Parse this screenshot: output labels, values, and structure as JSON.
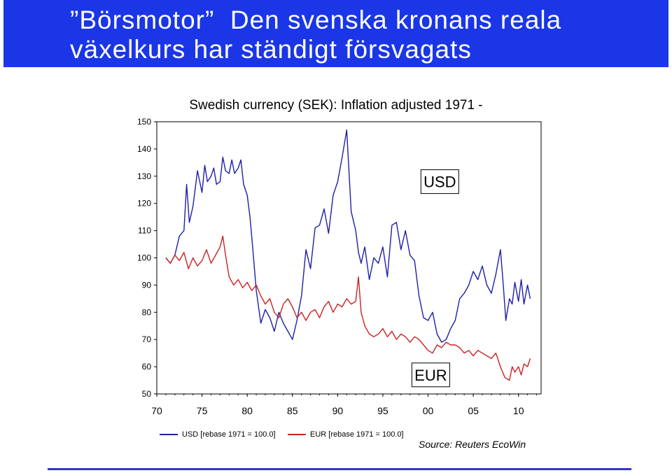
{
  "slide": {
    "title_line1": "”Börsmotor”  Den svenska kronans reala",
    "title_line2": "växelkurs har ständigt försvagats",
    "source": "Source: Reuters EcoWin",
    "banner_color": "#1a36e6",
    "rule_color": "#3333cc"
  },
  "chart_data": {
    "type": "line",
    "title": "Swedish currency (SEK): Inflation adjusted 1971 -",
    "xlabel": "",
    "ylabel": "",
    "xlim": [
      1970,
      2012.5
    ],
    "ylim": [
      50,
      150
    ],
    "x_ticks": [
      "70",
      "75",
      "80",
      "85",
      "90",
      "95",
      "00",
      "05",
      "10"
    ],
    "y_ticks": [
      "150",
      "140",
      "130",
      "120",
      "110",
      "100",
      "90",
      "80",
      "70",
      "60",
      "50"
    ],
    "grid": false,
    "legend_position": "bottom",
    "annotations": [
      {
        "text": "USD",
        "x": 2001.3,
        "y": 128
      },
      {
        "text": "EUR",
        "x": 2000.3,
        "y": 57
      }
    ],
    "series": [
      {
        "name": "USD [rebase 1971 = 100.0]",
        "color": "#1f1fa8",
        "x": [
          1971.0,
          1971.5,
          1972.0,
          1972.5,
          1973.0,
          1973.3,
          1973.6,
          1974.0,
          1974.5,
          1975.0,
          1975.3,
          1975.6,
          1976.0,
          1976.3,
          1976.6,
          1977.0,
          1977.3,
          1977.6,
          1978.0,
          1978.3,
          1978.6,
          1979.0,
          1979.3,
          1979.6,
          1980.0,
          1980.3,
          1980.6,
          1981.0,
          1981.5,
          1982.0,
          1982.5,
          1983.0,
          1983.5,
          1984.0,
          1984.5,
          1985.0,
          1985.5,
          1986.0,
          1986.5,
          1987.0,
          1987.5,
          1988.0,
          1988.5,
          1989.0,
          1989.5,
          1990.0,
          1990.5,
          1991.0,
          1991.5,
          1992.0,
          1992.3,
          1992.6,
          1993.0,
          1993.5,
          1994.0,
          1994.5,
          1995.0,
          1995.5,
          1996.0,
          1996.5,
          1997.0,
          1997.5,
          1998.0,
          1998.5,
          1999.0,
          1999.5,
          2000.0,
          2000.5,
          2001.0,
          2001.5,
          2002.0,
          2002.5,
          2003.0,
          2003.5,
          2004.0,
          2004.5,
          2005.0,
          2005.5,
          2006.0,
          2006.5,
          2007.0,
          2007.5,
          2008.0,
          2008.3,
          2008.6,
          2009.0,
          2009.3,
          2009.6,
          2010.0,
          2010.3,
          2010.6,
          2011.0,
          2011.3
        ],
        "y": [
          100,
          98,
          101,
          108,
          110,
          127,
          113,
          119,
          132,
          124,
          134,
          128,
          130,
          133,
          127,
          128,
          137,
          132,
          131,
          136,
          131,
          133,
          136,
          127,
          123,
          115,
          104,
          88,
          76,
          81,
          78,
          73,
          80,
          76,
          73,
          70,
          77,
          86,
          103,
          96,
          111,
          112,
          118,
          109,
          123,
          128,
          137,
          147,
          117,
          110,
          102,
          98,
          104,
          92,
          100,
          98,
          104,
          93,
          112,
          113,
          103,
          110,
          101,
          99,
          86,
          78,
          77,
          80,
          72,
          69,
          70,
          74,
          77,
          85,
          87,
          90,
          95,
          92,
          97,
          90,
          87,
          94,
          103,
          91,
          77,
          85,
          83,
          91,
          84,
          92,
          83,
          90,
          85
        ]
      },
      {
        "name": "EUR [rebase 1971 = 100.0]",
        "color": "#cc2222",
        "x": [
          1971.0,
          1971.5,
          1972.0,
          1972.5,
          1973.0,
          1973.5,
          1974.0,
          1974.5,
          1975.0,
          1975.5,
          1976.0,
          1976.5,
          1977.0,
          1977.3,
          1977.6,
          1978.0,
          1978.5,
          1979.0,
          1979.5,
          1980.0,
          1980.5,
          1981.0,
          1981.5,
          1982.0,
          1982.5,
          1983.0,
          1983.5,
          1984.0,
          1984.5,
          1985.0,
          1985.5,
          1986.0,
          1986.5,
          1987.0,
          1987.5,
          1988.0,
          1988.5,
          1989.0,
          1989.5,
          1990.0,
          1990.5,
          1991.0,
          1991.5,
          1992.0,
          1992.3,
          1992.6,
          1993.0,
          1993.5,
          1994.0,
          1994.5,
          1995.0,
          1995.5,
          1996.0,
          1996.5,
          1997.0,
          1997.5,
          1998.0,
          1998.5,
          1999.0,
          1999.5,
          2000.0,
          2000.5,
          2001.0,
          2001.5,
          2002.0,
          2002.5,
          2003.0,
          2003.5,
          2004.0,
          2004.5,
          2005.0,
          2005.5,
          2006.0,
          2006.5,
          2007.0,
          2007.5,
          2008.0,
          2008.5,
          2009.0,
          2009.3,
          2009.6,
          2010.0,
          2010.3,
          2010.6,
          2011.0,
          2011.3
        ],
        "y": [
          100,
          98,
          101,
          99,
          102,
          96,
          100,
          97,
          99,
          103,
          98,
          101,
          104,
          108,
          101,
          93,
          90,
          92,
          89,
          91,
          88,
          90,
          86,
          83,
          85,
          80,
          78,
          83,
          85,
          82,
          78,
          80,
          77,
          80,
          81,
          78,
          82,
          84,
          80,
          83,
          82,
          85,
          83,
          84,
          93,
          80,
          75,
          72,
          71,
          72,
          74,
          71,
          73,
          70,
          72,
          71,
          69,
          71,
          70,
          68,
          66,
          65,
          68,
          67,
          69,
          68,
          68,
          67,
          65,
          66,
          64,
          66,
          65,
          64,
          63,
          65,
          60,
          56,
          55,
          60,
          58,
          60,
          57,
          61,
          60,
          63
        ]
      }
    ]
  }
}
